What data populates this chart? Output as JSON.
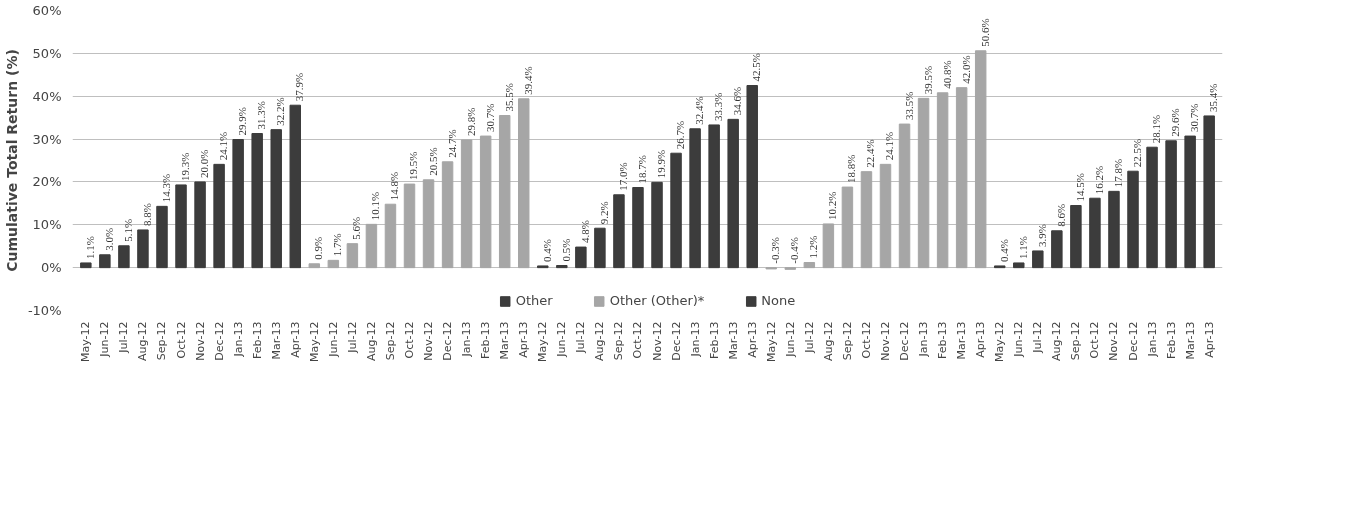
{
  "chart_data": {
    "type": "bar",
    "ylabel": "Cumulative Total Return (%)",
    "categories": [
      "May-12",
      "Jun-12",
      "Jul-12",
      "Aug-12",
      "Sep-12",
      "Oct-12",
      "Nov-12",
      "Dec-12",
      "Jan-13",
      "Feb-13",
      "Mar-13",
      "Apr-13",
      "May-12",
      "Jun-12",
      "Jul-12",
      "Aug-12",
      "Sep-12",
      "Oct-12",
      "Nov-12",
      "Dec-12",
      "Jan-13",
      "Feb-13",
      "Mar-13",
      "Apr-13",
      "May-12",
      "Jun-12",
      "Jul-12",
      "Aug-12",
      "Sep-12",
      "Oct-12",
      "Nov-12",
      "Dec-12",
      "Jan-13",
      "Feb-13",
      "Mar-13",
      "Apr-13",
      "May-12",
      "Jun-12",
      "Jul-12",
      "Aug-12",
      "Sep-12",
      "Oct-12",
      "Nov-12",
      "Dec-12",
      "Jan-13",
      "Feb-13",
      "Mar-13",
      "Apr-13",
      "May-12",
      "Jun-12",
      "Jul-12",
      "Aug-12",
      "Sep-12",
      "Oct-12",
      "Nov-12",
      "Dec-12",
      "Jan-13",
      "Feb-13",
      "Mar-13",
      "Apr-13"
    ],
    "series": [
      {
        "color": "#3c3c3c",
        "values": [
          1.1,
          3.0,
          5.1,
          8.8,
          14.3,
          19.3,
          20.0,
          24.1,
          29.9,
          31.3,
          32.2,
          37.9,
          null,
          null,
          null,
          null,
          null,
          null,
          null,
          null,
          null,
          null,
          null,
          null,
          null,
          null,
          null,
          null,
          null,
          null,
          null,
          null,
          null,
          null,
          null,
          null,
          null,
          null,
          null,
          null,
          null,
          null,
          null,
          null,
          null,
          null,
          null,
          null,
          null,
          null,
          null,
          null,
          null,
          null,
          null,
          null,
          null,
          null,
          null,
          null
        ],
        "value_labels": [
          "1.1%",
          "3.0%",
          "5.1%",
          "8.8%",
          "14.3%",
          "19.3%",
          "20.0%",
          "24.1%",
          "29.9%",
          "31.3%",
          "32.2%",
          "37.9%",
          null,
          null,
          null,
          null,
          null,
          null,
          null,
          null,
          null,
          null,
          null,
          null,
          null,
          null,
          null,
          null,
          null,
          null,
          null,
          null,
          null,
          null,
          null,
          null,
          null,
          null,
          null,
          null,
          null,
          null,
          null,
          null,
          null,
          null,
          null,
          null,
          null,
          null,
          null,
          null,
          null,
          null,
          null,
          null,
          null,
          null,
          null,
          null
        ]
      },
      {
        "color": "#a6a6a6",
        "values": [
          null,
          null,
          null,
          null,
          null,
          null,
          null,
          null,
          null,
          null,
          null,
          null,
          0.9,
          1.7,
          5.6,
          10.1,
          14.8,
          19.5,
          20.5,
          24.7,
          29.8,
          30.7,
          35.5,
          39.4,
          null,
          null,
          null,
          null,
          null,
          null,
          null,
          null,
          null,
          null,
          null,
          null,
          null,
          null,
          null,
          null,
          null,
          null,
          null,
          null,
          null,
          null,
          null,
          null,
          null,
          null,
          null,
          null,
          null,
          null,
          null,
          null,
          null,
          null,
          null,
          null
        ],
        "value_labels": [
          null,
          null,
          null,
          null,
          null,
          null,
          null,
          null,
          null,
          null,
          null,
          null,
          "0.9%",
          "1.7%",
          "5.6%",
          "10.1%",
          "14.8%",
          "19.5%",
          "20.5%",
          "24.7%",
          "29.8%",
          "30.7%",
          "35.5%",
          "39.4%",
          null,
          null,
          null,
          null,
          null,
          null,
          null,
          null,
          null,
          null,
          null,
          null,
          null,
          null,
          null,
          null,
          null,
          null,
          null,
          null,
          null,
          null,
          null,
          null,
          null,
          null,
          null,
          null,
          null,
          null,
          null,
          null,
          null,
          null,
          null,
          null
        ]
      },
      {
        "name": "Other",
        "color": "#3c3c3c",
        "values": [
          null,
          null,
          null,
          null,
          null,
          null,
          null,
          null,
          null,
          null,
          null,
          null,
          null,
          null,
          null,
          null,
          null,
          null,
          null,
          null,
          null,
          null,
          null,
          null,
          0.4,
          0.5,
          4.8,
          9.2,
          17.0,
          18.7,
          19.9,
          26.7,
          32.4,
          33.3,
          34.6,
          42.5,
          null,
          null,
          null,
          null,
          null,
          null,
          null,
          null,
          null,
          null,
          null,
          null,
          null,
          null,
          null,
          null,
          null,
          null,
          null,
          null,
          null,
          null,
          null,
          null
        ],
        "value_labels": [
          null,
          null,
          null,
          null,
          null,
          null,
          null,
          null,
          null,
          null,
          null,
          null,
          null,
          null,
          null,
          null,
          null,
          null,
          null,
          null,
          null,
          null,
          null,
          null,
          "0.4%",
          "0.5%",
          "4.8%",
          "9.2%",
          "17.0%",
          "18.7%",
          "19.9%",
          "26.7%",
          "32.4%",
          "33.3%",
          "34.6%",
          "42.5%",
          null,
          null,
          null,
          null,
          null,
          null,
          null,
          null,
          null,
          null,
          null,
          null,
          null,
          null,
          null,
          null,
          null,
          null,
          null,
          null,
          null,
          null,
          null,
          null
        ]
      },
      {
        "name": "Other (Other)*",
        "color": "#a6a6a6",
        "values": [
          null,
          null,
          null,
          null,
          null,
          null,
          null,
          null,
          null,
          null,
          null,
          null,
          null,
          null,
          null,
          null,
          null,
          null,
          null,
          null,
          null,
          null,
          null,
          null,
          null,
          null,
          null,
          null,
          null,
          null,
          null,
          null,
          null,
          null,
          null,
          null,
          -0.3,
          -0.4,
          1.2,
          10.2,
          18.8,
          22.4,
          24.1,
          33.5,
          39.5,
          40.8,
          42.0,
          50.6,
          null,
          null,
          null,
          null,
          null,
          null,
          null,
          null,
          null,
          null,
          null,
          null
        ],
        "value_labels": [
          null,
          null,
          null,
          null,
          null,
          null,
          null,
          null,
          null,
          null,
          null,
          null,
          null,
          null,
          null,
          null,
          null,
          null,
          null,
          null,
          null,
          null,
          null,
          null,
          null,
          null,
          null,
          null,
          null,
          null,
          null,
          null,
          null,
          null,
          null,
          null,
          "-0.3%",
          "-0.4%",
          "1.2%",
          "10.2%",
          "18.8%",
          "22.4%",
          "24.1%",
          "33.5%",
          "39.5%",
          "40.8%",
          "42.0%",
          "50.6%",
          null,
          null,
          null,
          null,
          null,
          null,
          null,
          null,
          null,
          null,
          null,
          null
        ]
      },
      {
        "name": "None",
        "color": "#3c3c3c",
        "values": [
          null,
          null,
          null,
          null,
          null,
          null,
          null,
          null,
          null,
          null,
          null,
          null,
          null,
          null,
          null,
          null,
          null,
          null,
          null,
          null,
          null,
          null,
          null,
          null,
          null,
          null,
          null,
          null,
          null,
          null,
          null,
          null,
          null,
          null,
          null,
          null,
          null,
          null,
          null,
          null,
          null,
          null,
          null,
          null,
          null,
          null,
          null,
          null,
          0.4,
          1.1,
          3.9,
          8.6,
          14.5,
          16.2,
          17.8,
          22.5,
          28.1,
          29.6,
          30.7,
          35.4
        ],
        "value_labels": [
          null,
          null,
          null,
          null,
          null,
          null,
          null,
          null,
          null,
          null,
          null,
          null,
          null,
          null,
          null,
          null,
          null,
          null,
          null,
          null,
          null,
          null,
          null,
          null,
          null,
          null,
          null,
          null,
          null,
          null,
          null,
          null,
          null,
          null,
          null,
          null,
          null,
          null,
          null,
          null,
          null,
          null,
          null,
          null,
          null,
          null,
          null,
          null,
          "0.4%",
          "1.1%",
          "3.9%",
          "8.6%",
          "14.5%",
          "16.2%",
          "17.8%",
          "22.5%",
          "28.1%",
          "29.6%",
          "30.7%",
          "35.4%"
        ]
      }
    ],
    "ylim": [
      -10,
      60
    ],
    "yticks": [
      {
        "value": -10,
        "label": "-10%"
      },
      {
        "value": 0,
        "label": "0%"
      },
      {
        "value": 10,
        "label": "10%"
      },
      {
        "value": 20,
        "label": "20%"
      },
      {
        "value": 30,
        "label": "30%"
      },
      {
        "value": 40,
        "label": "40%"
      },
      {
        "value": 50,
        "label": "50%"
      },
      {
        "value": 60,
        "label": "60%"
      }
    ],
    "grid": "y",
    "legend": "bottom"
  }
}
